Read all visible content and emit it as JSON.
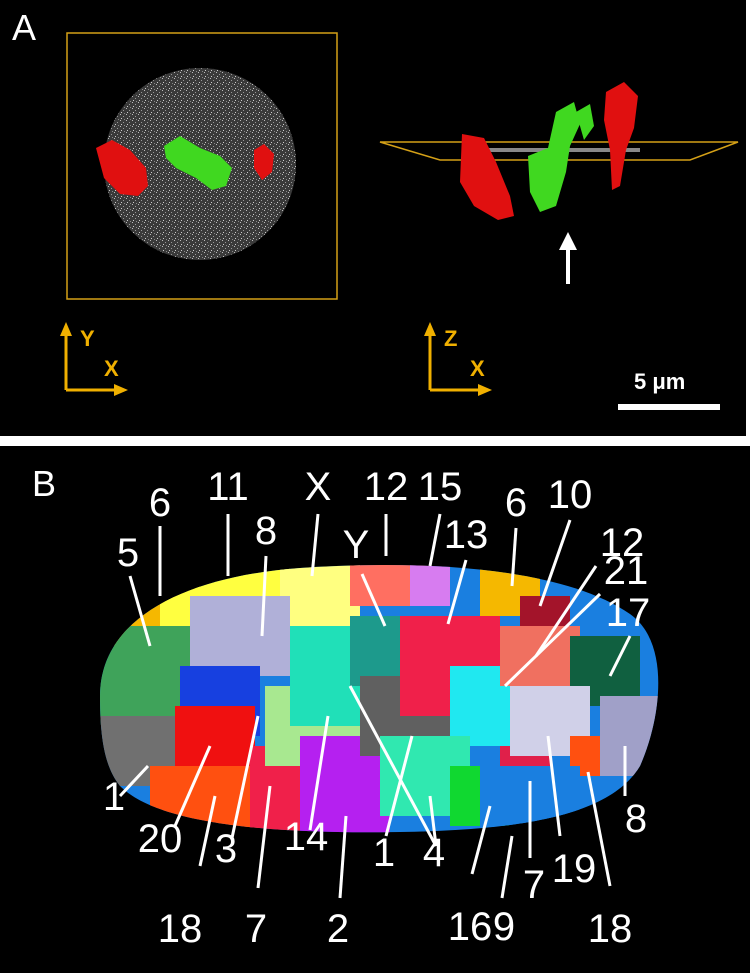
{
  "panel_a": {
    "label": "A",
    "axes_left": {
      "vertical": "Y",
      "horizontal": "X"
    },
    "axes_right": {
      "vertical": "Z",
      "horizontal": "X"
    },
    "scale_bar": "5 μm"
  },
  "panel_b": {
    "label": "B",
    "labels": [
      "6",
      "11",
      "X",
      "12",
      "15",
      "6",
      "10",
      "5",
      "8",
      "Y",
      "13",
      "12",
      "21",
      "17",
      "1",
      "20",
      "3",
      "18",
      "7",
      "14",
      "2",
      "1",
      "4",
      "16",
      "9",
      "7",
      "19",
      "18",
      "8"
    ]
  },
  "colors": {
    "axis": "#f0b000",
    "chromosome_red": "#e01010",
    "chromosome_green": "#40d820",
    "background": "#000000"
  }
}
